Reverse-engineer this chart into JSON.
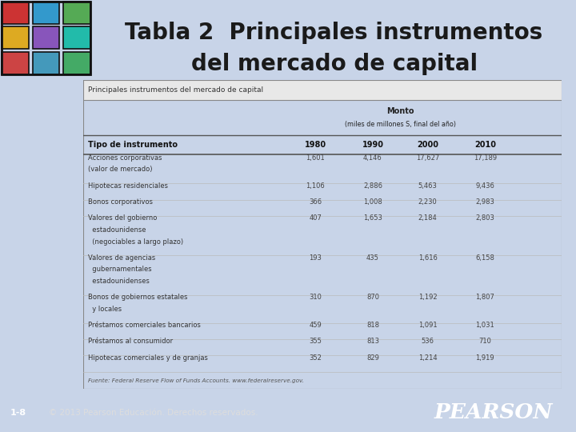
{
  "title_line1": "Tabla 2  Principales instrumentos",
  "title_line2": "del mercado de capital",
  "table_title": "Principales instrumentos del mercado de capital",
  "monto_header": "Monto",
  "monto_subheader": "(miles de millones S, final del año)",
  "col_header": "Tipo de instrumento",
  "years": [
    "1980",
    "1990",
    "2000",
    "2010"
  ],
  "rows": [
    {
      "label": [
        "Acciones corporativas",
        "(valor de mercado)"
      ],
      "values": [
        "1,601",
        "4,146",
        "17,627",
        "17,189"
      ]
    },
    {
      "label": [
        "Hipotecas residenciales"
      ],
      "values": [
        "1,106",
        "2,886",
        "5,463",
        "9,436"
      ]
    },
    {
      "label": [
        "Bonos corporativos"
      ],
      "values": [
        "366",
        "1,008",
        "2,230",
        "2,983"
      ]
    },
    {
      "label": [
        "Valores del gobierno",
        "  estadounidense",
        "  (negociables a largo plazo)"
      ],
      "values": [
        "407",
        "1,653",
        "2,184",
        "2,803"
      ]
    },
    {
      "label": [
        "Valores de agencias",
        "  gubernamentales",
        "  estadounidenses"
      ],
      "values": [
        "193",
        "435",
        "1,616",
        "6,158"
      ]
    },
    {
      "label": [
        "Bonos de gobiernos estatales",
        "  y locales"
      ],
      "values": [
        "310",
        "870",
        "1,192",
        "1,807"
      ]
    },
    {
      "label": [
        "Préstamos comerciales bancarios"
      ],
      "values": [
        "459",
        "818",
        "1,091",
        "1,031"
      ]
    },
    {
      "label": [
        "Préstamos al consumidor"
      ],
      "values": [
        "355",
        "813",
        "536",
        "710"
      ]
    },
    {
      "label": [
        "Hipotecas comerciales y de granjas"
      ],
      "values": [
        "352",
        "829",
        "1,214",
        "1,919"
      ]
    }
  ],
  "source_text": "Fuente: Federal Reserve Flow of Funds Accounts. www.federalreserve.gov.",
  "footer_left": "1-8",
  "footer_right": "© 2013 Pearson Educación. Derechos reservados.",
  "bg_color": "#c8d4e8",
  "table_bg": "#ffffff",
  "title_color": "#1a1a1a",
  "footer_bg": "#1e6bbf",
  "pearson_italic": true
}
